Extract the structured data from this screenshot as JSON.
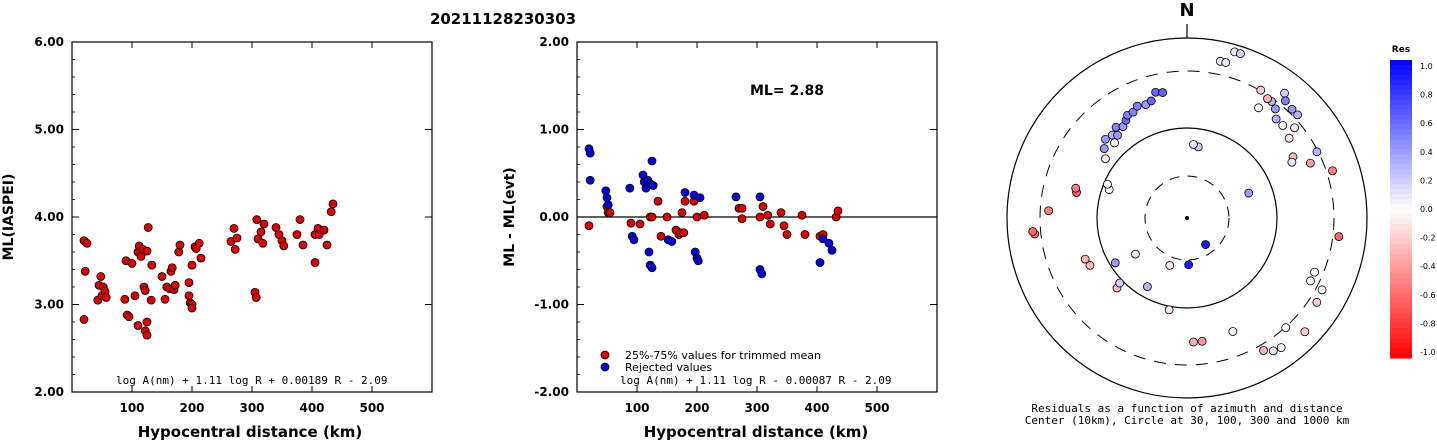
{
  "title": "20211128230303",
  "chart_data": [
    {
      "type": "scatter",
      "xlabel": "Hypocentral distance (km)",
      "ylabel": "ML(IASPEI)",
      "xlim": [
        0,
        600
      ],
      "ylim": [
        2.0,
        6.0
      ],
      "xticks": [
        "100",
        "200",
        "300",
        "400",
        "500"
      ],
      "yticks": [
        "2.00",
        "3.00",
        "4.00",
        "5.00",
        "6.00"
      ],
      "formula": "log A(nm) + 1.11 log R + 0.00189 R - 2.09",
      "series": [
        {
          "color": "#dd0000",
          "points": [
            [
              20,
              3.73
            ],
            [
              22,
              3.38
            ],
            [
              20,
              2.83
            ],
            [
              25,
              3.7
            ],
            [
              43,
              3.05
            ],
            [
              45,
              3.22
            ],
            [
              48,
              3.32
            ],
            [
              50,
              3.1
            ],
            [
              52,
              3.2
            ],
            [
              55,
              3.15
            ],
            [
              57,
              3.08
            ],
            [
              88,
              3.06
            ],
            [
              90,
              3.5
            ],
            [
              92,
              2.88
            ],
            [
              95,
              2.86
            ],
            [
              100,
              3.47
            ],
            [
              105,
              3.1
            ],
            [
              110,
              2.76
            ],
            [
              110,
              3.6
            ],
            [
              112,
              3.67
            ],
            [
              115,
              3.55
            ],
            [
              118,
              3.63
            ],
            [
              120,
              3.2
            ],
            [
              122,
              3.16
            ],
            [
              122,
              2.7
            ],
            [
              125,
              3.61
            ],
            [
              125,
              2.8
            ],
            [
              125,
              2.65
            ],
            [
              127,
              3.88
            ],
            [
              132,
              3.05
            ],
            [
              133,
              3.45
            ],
            [
              150,
              3.32
            ],
            [
              155,
              3.06
            ],
            [
              158,
              3.2
            ],
            [
              163,
              3.18
            ],
            [
              165,
              3.38
            ],
            [
              167,
              3.42
            ],
            [
              170,
              3.17
            ],
            [
              172,
              3.22
            ],
            [
              178,
              3.6
            ],
            [
              180,
              3.68
            ],
            [
              195,
              3.25
            ],
            [
              195,
              3.1
            ],
            [
              197,
              3.02
            ],
            [
              200,
              3.0
            ],
            [
              200,
              3.45
            ],
            [
              200,
              2.96
            ],
            [
              205,
              3.66
            ],
            [
              207,
              3.64
            ],
            [
              212,
              3.7
            ],
            [
              215,
              3.53
            ],
            [
              265,
              3.72
            ],
            [
              270,
              3.87
            ],
            [
              272,
              3.63
            ],
            [
              275,
              3.76
            ],
            [
              305,
              3.14
            ],
            [
              307,
              3.08
            ],
            [
              308,
              3.97
            ],
            [
              310,
              3.75
            ],
            [
              315,
              3.83
            ],
            [
              318,
              3.7
            ],
            [
              320,
              3.92
            ],
            [
              340,
              3.88
            ],
            [
              345,
              3.8
            ],
            [
              350,
              3.73
            ],
            [
              353,
              3.67
            ],
            [
              375,
              3.8
            ],
            [
              380,
              3.97
            ],
            [
              385,
              3.68
            ],
            [
              405,
              3.48
            ],
            [
              405,
              3.8
            ],
            [
              410,
              3.87
            ],
            [
              412,
              3.8
            ],
            [
              420,
              3.85
            ],
            [
              425,
              3.68
            ],
            [
              432,
              4.06
            ],
            [
              435,
              4.15
            ]
          ]
        }
      ]
    },
    {
      "type": "scatter",
      "xlabel": "Hypocentral distance (km)",
      "ylabel": "ML - ML(evt)",
      "xlim": [
        0,
        600
      ],
      "ylim": [
        -2.0,
        2.0
      ],
      "xticks": [
        "100",
        "200",
        "300",
        "400",
        "500"
      ],
      "yticks": [
        "-2.00",
        "-1.00",
        "0.00",
        "1.00",
        "2.00"
      ],
      "annotation": "ML= 2.88",
      "formula": "log A(nm) + 1.11 log R - 0.00087 R - 2.09",
      "legend": [
        "25%-75% values for trimmed mean",
        "Rejected values"
      ],
      "series": [
        {
          "name": "25%-75% values for trimmed mean",
          "color": "#dd0000",
          "points": [
            [
              20,
              -0.1
            ],
            [
              50,
              0.12
            ],
            [
              52,
              0.05
            ],
            [
              55,
              0.05
            ],
            [
              90,
              -0.07
            ],
            [
              105,
              -0.08
            ],
            [
              122,
              0.0
            ],
            [
              125,
              0.0
            ],
            [
              135,
              0.18
            ],
            [
              140,
              -0.22
            ],
            [
              150,
              0.0
            ],
            [
              165,
              -0.15
            ],
            [
              170,
              -0.2
            ],
            [
              172,
              -0.18
            ],
            [
              175,
              0.05
            ],
            [
              178,
              -0.18
            ],
            [
              180,
              0.18
            ],
            [
              195,
              0.18
            ],
            [
              200,
              0.0
            ],
            [
              212,
              0.02
            ],
            [
              270,
              0.1
            ],
            [
              275,
              0.1
            ],
            [
              275,
              -0.02
            ],
            [
              305,
              0.0
            ],
            [
              310,
              0.12
            ],
            [
              318,
              0.02
            ],
            [
              322,
              -0.08
            ],
            [
              340,
              0.05
            ],
            [
              345,
              -0.1
            ],
            [
              350,
              -0.2
            ],
            [
              375,
              0.02
            ],
            [
              380,
              -0.2
            ],
            [
              405,
              -0.22
            ],
            [
              410,
              -0.2
            ],
            [
              432,
              0.0
            ],
            [
              435,
              0.07
            ]
          ]
        },
        {
          "name": "Rejected values",
          "color": "#0000dd",
          "points": [
            [
              20,
              0.78
            ],
            [
              22,
              0.73
            ],
            [
              22,
              0.42
            ],
            [
              48,
              0.3
            ],
            [
              50,
              0.22
            ],
            [
              52,
              0.14
            ],
            [
              88,
              0.33
            ],
            [
              92,
              -0.22
            ],
            [
              95,
              -0.26
            ],
            [
              110,
              0.48
            ],
            [
              112,
              0.4
            ],
            [
              115,
              0.33
            ],
            [
              118,
              0.42
            ],
            [
              120,
              -0.4
            ],
            [
              122,
              0.38
            ],
            [
              122,
              -0.55
            ],
            [
              125,
              0.64
            ],
            [
              125,
              -0.58
            ],
            [
              127,
              0.36
            ],
            [
              152,
              -0.26
            ],
            [
              158,
              -0.28
            ],
            [
              180,
              0.28
            ],
            [
              195,
              0.25
            ],
            [
              197,
              -0.4
            ],
            [
              200,
              -0.47
            ],
            [
              202,
              -0.5
            ],
            [
              205,
              0.22
            ],
            [
              265,
              0.23
            ],
            [
              305,
              0.23
            ],
            [
              305,
              -0.6
            ],
            [
              308,
              -0.65
            ],
            [
              405,
              -0.52
            ],
            [
              410,
              -0.25
            ],
            [
              420,
              -0.3
            ],
            [
              425,
              -0.38
            ]
          ]
        }
      ]
    }
  ],
  "polar": {
    "north_label": "N",
    "caption_line1": "Residuals as a function of azimuth and distance",
    "caption_line2": "Center (10km), Circle at 30, 100, 300 and 1000 km",
    "points": [
      {
        "az": 16,
        "r": 0.96,
        "res": 0.1
      },
      {
        "az": 18,
        "r": 0.96,
        "res": 0.2
      },
      {
        "az": 12,
        "r": 0.89,
        "res": 0.1
      },
      {
        "az": 14,
        "r": 0.89,
        "res": 0.1
      },
      {
        "az": 38,
        "r": 0.88,
        "res": 0.2
      },
      {
        "az": 40,
        "r": 0.85,
        "res": 0.5
      },
      {
        "az": 44,
        "r": 0.84,
        "res": 0.4
      },
      {
        "az": 47,
        "r": 0.84,
        "res": 0.3
      },
      {
        "az": 36,
        "r": 0.8,
        "res": 0.3
      },
      {
        "az": 39,
        "r": 0.78,
        "res": 0.4
      },
      {
        "az": 42,
        "r": 0.74,
        "res": 0.3
      },
      {
        "az": 46,
        "r": 0.74,
        "res": 0.0
      },
      {
        "az": 50,
        "r": 0.78,
        "res": -0.1
      },
      {
        "az": 52,
        "r": 0.72,
        "res": -0.1
      },
      {
        "az": 34,
        "r": 0.8,
        "res": -0.3
      },
      {
        "az": 30,
        "r": 0.82,
        "res": -0.2
      },
      {
        "az": 33,
        "r": 0.73,
        "res": 0.0
      },
      {
        "az": 60,
        "r": 0.68,
        "res": -0.3
      },
      {
        "az": 62,
        "r": 0.66,
        "res": 0.1
      },
      {
        "az": 66,
        "r": 0.75,
        "res": -0.4
      },
      {
        "az": 63,
        "r": 0.81,
        "res": 0.3
      },
      {
        "az": 72,
        "r": 0.85,
        "res": -0.5
      },
      {
        "az": 97,
        "r": 0.85,
        "res": -0.6
      },
      {
        "az": 113,
        "r": 0.77,
        "res": 0.0
      },
      {
        "az": 117,
        "r": 0.77,
        "res": 0.0
      },
      {
        "az": 118,
        "r": 0.85,
        "res": 0.0
      },
      {
        "az": 123,
        "r": 0.86,
        "res": -0.2
      },
      {
        "az": 138,
        "r": 0.82,
        "res": 0.0
      },
      {
        "az": 144,
        "r": 0.89,
        "res": 0.0
      },
      {
        "az": 147,
        "r": 0.88,
        "res": 0.1
      },
      {
        "az": 150,
        "r": 0.85,
        "res": -0.3
      },
      {
        "az": 158,
        "r": 0.68,
        "res": 0.0
      },
      {
        "az": 177,
        "r": 0.69,
        "res": -0.3
      },
      {
        "az": 173,
        "r": 0.69,
        "res": -0.4
      },
      {
        "az": 191,
        "r": 0.52,
        "res": -0.1
      },
      {
        "az": 225,
        "r": 0.55,
        "res": -0.3
      },
      {
        "az": 226,
        "r": 0.52,
        "res": 0.2
      },
      {
        "az": 238,
        "r": 0.47,
        "res": 0.4
      },
      {
        "az": 244,
        "r": 0.6,
        "res": -0.3
      },
      {
        "az": 248,
        "r": 0.61,
        "res": -0.3
      },
      {
        "az": 264,
        "r": 0.85,
        "res": -0.6
      },
      {
        "az": 265,
        "r": 0.86,
        "res": -0.6
      },
      {
        "az": 273,
        "r": 0.77,
        "res": -0.5
      },
      {
        "az": 283,
        "r": 0.63,
        "res": -0.6
      },
      {
        "az": 285,
        "r": 0.64,
        "res": -0.5
      },
      {
        "az": 290,
        "r": 0.46,
        "res": 0.0
      },
      {
        "az": 293,
        "r": 0.48,
        "res": 0.0
      },
      {
        "az": 306,
        "r": 0.56,
        "res": -0.1
      },
      {
        "az": 310,
        "r": 0.6,
        "res": 0.4
      },
      {
        "az": 314,
        "r": 0.63,
        "res": 0.4
      },
      {
        "az": 318,
        "r": 0.62,
        "res": 0.3
      },
      {
        "az": 320,
        "r": 0.6,
        "res": 0.4
      },
      {
        "az": 322,
        "r": 0.64,
        "res": 0.5
      },
      {
        "az": 325,
        "r": 0.62,
        "res": 0.4
      },
      {
        "az": 328,
        "r": 0.64,
        "res": 0.6
      },
      {
        "az": 330,
        "r": 0.66,
        "res": 0.5
      },
      {
        "az": 333,
        "r": 0.66,
        "res": 0.5
      },
      {
        "az": 336,
        "r": 0.68,
        "res": 0.5
      },
      {
        "az": 340,
        "r": 0.67,
        "res": 0.4
      },
      {
        "az": 343,
        "r": 0.68,
        "res": 0.6
      },
      {
        "az": 346,
        "r": 0.72,
        "res": 0.6
      },
      {
        "az": 349,
        "r": 0.71,
        "res": 0.6
      },
      {
        "az": 316,
        "r": 0.58,
        "res": 0.0
      },
      {
        "az": 9,
        "r": 0.4,
        "res": 0.2
      },
      {
        "az": 5,
        "r": 0.41,
        "res": 0.1
      },
      {
        "az": 68,
        "r": 0.37,
        "res": 0.4
      },
      {
        "az": 145,
        "r": 0.18,
        "res": 0.9
      },
      {
        "az": 178,
        "r": 0.26,
        "res": 0.9
      },
      {
        "az": 210,
        "r": 0.44,
        "res": 0.3
      },
      {
        "az": 235,
        "r": 0.35,
        "res": 0.1
      },
      {
        "az": 200,
        "r": 0.28,
        "res": -0.1
      },
      {
        "az": 134,
        "r": 0.91,
        "res": -0.2
      }
    ]
  },
  "colorbar": {
    "title": "Res",
    "labels": [
      "1.0",
      "0.8",
      "0.6",
      "0.4",
      "0.2",
      "0.0",
      "-0.2",
      "-0.4",
      "-0.6",
      "-0.8",
      "-1.0"
    ]
  }
}
